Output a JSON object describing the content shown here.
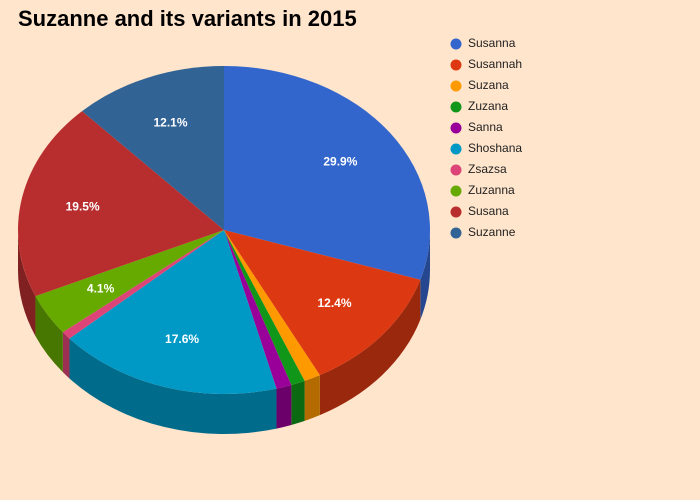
{
  "chart_data": {
    "type": "pie3d",
    "title": "Suzanne and its variants in 2015",
    "categories": [
      "Susanna",
      "Susannah",
      "Suzana",
      "Zuzana",
      "Sanna",
      "Shoshana",
      "Zsazsa",
      "Zuzanna",
      "Susana",
      "Suzanne"
    ],
    "values": [
      29.9,
      12.4,
      1.3,
      1.1,
      1.2,
      17.6,
      0.8,
      4.1,
      19.5,
      12.1
    ],
    "value_labels": [
      "29.9%",
      "12.4%",
      null,
      null,
      null,
      "17.6%",
      null,
      "4.1%",
      "19.5%",
      "12.1%"
    ],
    "colors": [
      "#3366cc",
      "#dc3912",
      "#ff9900",
      "#109618",
      "#990099",
      "#0099c6",
      "#dd4477",
      "#66aa00",
      "#b82e2e",
      "#316395"
    ]
  }
}
